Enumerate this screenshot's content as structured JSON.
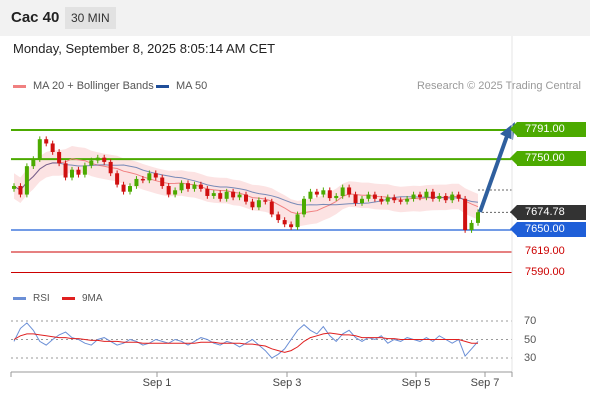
{
  "header": {
    "title": "Cac 40",
    "timeframe": "30 MIN"
  },
  "timestamp": "Monday, September 8, 2025 8:05:14 AM CET",
  "legend": {
    "items": [
      {
        "label": "MA 20 + Bollinger Bands",
        "color": "#f08080"
      },
      {
        "label": "MA 50",
        "color": "#1f4e99"
      }
    ],
    "credit": "Research © 2025 Trading Central"
  },
  "levels": {
    "resistance_2": {
      "label": "7791.00",
      "value": 7791,
      "color": "#4caa00"
    },
    "resistance_1": {
      "label": "7750.00",
      "value": 7750,
      "color": "#4caa00"
    },
    "current": {
      "label": "7674.78",
      "value": 7674.78,
      "color": "#333333"
    },
    "pivot": {
      "label": "7650.00",
      "value": 7650,
      "color": "#1f5fd8"
    },
    "support_1": {
      "label": "7619.00",
      "value": 7619,
      "color": "#cc0000"
    },
    "support_2": {
      "label": "7590.00",
      "value": 7590,
      "color": "#cc0000"
    }
  },
  "rsi": {
    "legend": [
      {
        "label": "RSI",
        "color": "#6b8fd6"
      },
      {
        "label": "9MA",
        "color": "#e02020"
      }
    ],
    "levels": [
      "70",
      "50",
      "30"
    ]
  },
  "x_axis": {
    "labels": [
      "Sep 1",
      "Sep 3",
      "Sep 5",
      "Sep 7"
    ]
  },
  "chart_data": {
    "type": "candlestick",
    "close_series": [
      7712,
      7700,
      7740,
      7750,
      7778,
      7772,
      7760,
      7744,
      7724,
      7735,
      7728,
      7741,
      7748,
      7752,
      7746,
      7730,
      7714,
      7704,
      7712,
      7722,
      7720,
      7730,
      7724,
      7712,
      7700,
      7706,
      7716,
      7708,
      7714,
      7708,
      7698,
      7702,
      7694,
      7704,
      7696,
      7700,
      7690,
      7682,
      7692,
      7690,
      7672,
      7664,
      7658,
      7654,
      7672,
      7694,
      7704,
      7700,
      7706,
      7695,
      7698,
      7710,
      7700,
      7688,
      7694,
      7700,
      7694,
      7690,
      7696,
      7692,
      7690,
      7694,
      7700,
      7696,
      7704,
      7694,
      7698,
      7692,
      7700,
      7694,
      7650,
      7660,
      7675
    ],
    "rsi_values": [
      48,
      62,
      68,
      60,
      48,
      44,
      50,
      55,
      58,
      52,
      50,
      46,
      44,
      50,
      52,
      48,
      44,
      46,
      50,
      48,
      44,
      46,
      50,
      48,
      46,
      50,
      48,
      44,
      48,
      52,
      50,
      46,
      44,
      48,
      46,
      42,
      46,
      50,
      44,
      38,
      30,
      34,
      40,
      50,
      60,
      66,
      60,
      56,
      64,
      54,
      48,
      56,
      60,
      52,
      48,
      52,
      50,
      54,
      46,
      50,
      48,
      52,
      50,
      48,
      52,
      48,
      54,
      50,
      46,
      50,
      32,
      40,
      48
    ],
    "rsi_ma_values": [
      50,
      54,
      56,
      56,
      55,
      54,
      53,
      52,
      52,
      51,
      51,
      50,
      49,
      49,
      48,
      48,
      48,
      47,
      47,
      47,
      46,
      46,
      46,
      46,
      46,
      46,
      46,
      46,
      46,
      47,
      47,
      47,
      46,
      46,
      46,
      46,
      45,
      45,
      44,
      43,
      40,
      38,
      36,
      38,
      42,
      48,
      52,
      54,
      56,
      57,
      56,
      55,
      55,
      54,
      52,
      52,
      52,
      52,
      51,
      51,
      50,
      50,
      50,
      50,
      50,
      50,
      50,
      50,
      50,
      50,
      48,
      46,
      46
    ]
  }
}
